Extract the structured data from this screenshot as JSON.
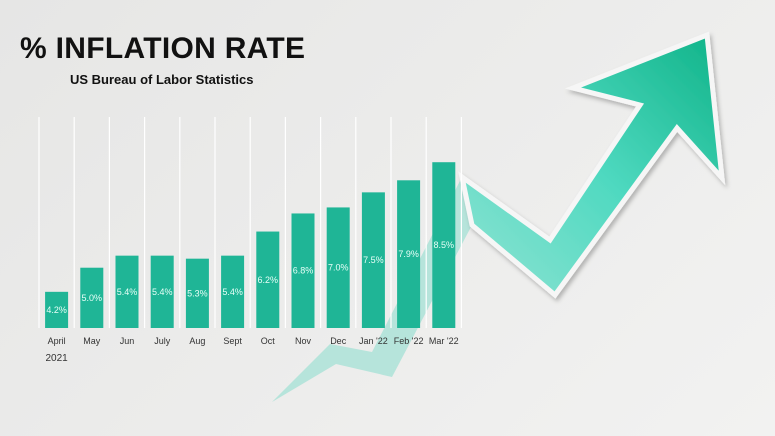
{
  "chart_data": {
    "type": "bar",
    "title": "% INFLATION RATE",
    "subtitle": "US Bureau of Labor Statistics",
    "categories": [
      "April",
      "May",
      "Jun",
      "July",
      "Aug",
      "Sept",
      "Oct",
      "Nov",
      "Dec",
      "Jan '22",
      "Feb '22",
      "Mar  '22"
    ],
    "category_sublabel": "2021",
    "values": [
      4.2,
      5.0,
      5.4,
      5.4,
      5.3,
      5.4,
      6.2,
      6.8,
      7.0,
      7.5,
      7.9,
      8.5
    ],
    "data_labels": [
      "4.2%",
      "5.0%",
      "5.4%",
      "5.4%",
      "5.3%",
      "5.4%",
      "6.2%",
      "6.8%",
      "7.0%",
      "7.5%",
      "7.9%",
      "8.5%"
    ],
    "unit": "%",
    "ylim": [
      3,
      10
    ],
    "xlabel": "",
    "ylabel": "",
    "grid": "vertical",
    "legend": "none",
    "colors": {
      "bar": "#1fb596",
      "arrow": "#2ecfae",
      "arrow_dark": "#12b38a"
    },
    "decoration": "upward-trend-arrow"
  }
}
